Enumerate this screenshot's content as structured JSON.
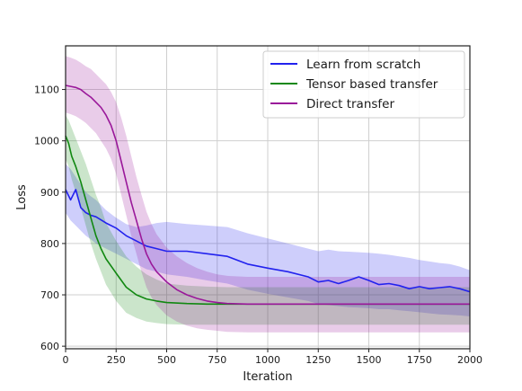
{
  "chart_data": {
    "type": "line",
    "title": "",
    "xlabel": "Iteration",
    "ylabel": "Loss",
    "xlim": [
      0,
      2000
    ],
    "ylim": [
      595,
      1185
    ],
    "xticks": [
      0,
      250,
      500,
      750,
      1000,
      1250,
      1500,
      1750,
      2000
    ],
    "yticks": [
      600,
      700,
      800,
      900,
      1000,
      1100
    ],
    "grid": true,
    "legend_position": "top-right",
    "series": [
      {
        "name": "Learn from scratch",
        "color": "#2222ee",
        "x": [
          0,
          25,
          50,
          75,
          100,
          125,
          150,
          200,
          250,
          300,
          350,
          400,
          450,
          500,
          600,
          700,
          800,
          900,
          1000,
          1100,
          1200,
          1250,
          1300,
          1350,
          1400,
          1450,
          1500,
          1550,
          1600,
          1650,
          1700,
          1750,
          1800,
          1850,
          1900,
          1950,
          2000
        ],
        "y": [
          905,
          885,
          905,
          870,
          860,
          855,
          852,
          840,
          830,
          815,
          805,
          795,
          790,
          785,
          785,
          780,
          775,
          760,
          752,
          745,
          735,
          725,
          728,
          722,
          728,
          735,
          728,
          720,
          722,
          718,
          712,
          716,
          712,
          714,
          716,
          712,
          706
        ],
        "upper": [
          955,
          945,
          930,
          915,
          900,
          892,
          885,
          865,
          850,
          838,
          832,
          835,
          840,
          842,
          838,
          835,
          832,
          820,
          810,
          800,
          790,
          785,
          788,
          785,
          784,
          783,
          782,
          780,
          778,
          775,
          772,
          768,
          765,
          762,
          760,
          755,
          748
        ],
        "lower": [
          860,
          845,
          835,
          825,
          815,
          808,
          800,
          790,
          780,
          770,
          760,
          750,
          745,
          740,
          735,
          728,
          722,
          710,
          702,
          695,
          688,
          682,
          680,
          678,
          676,
          675,
          674,
          672,
          672,
          670,
          668,
          666,
          664,
          662,
          661,
          660,
          658
        ]
      },
      {
        "name": "Tensor based transfer",
        "color": "#118811",
        "x": [
          0,
          15,
          30,
          50,
          75,
          100,
          125,
          150,
          175,
          200,
          250,
          300,
          350,
          400,
          450,
          500,
          600,
          700,
          800,
          900,
          1000,
          1200,
          1400,
          1600,
          1800,
          2000
        ],
        "y": [
          1010,
          995,
          970,
          950,
          920,
          885,
          850,
          815,
          790,
          770,
          742,
          715,
          700,
          692,
          688,
          685,
          683,
          682,
          682,
          682,
          682,
          682,
          682,
          682,
          682,
          682
        ],
        "upper": [
          1050,
          1040,
          1025,
          1005,
          980,
          955,
          925,
          895,
          870,
          840,
          805,
          775,
          755,
          740,
          730,
          722,
          718,
          716,
          715,
          715,
          715,
          715,
          715,
          715,
          715,
          715
        ],
        "lower": [
          965,
          950,
          925,
          900,
          870,
          835,
          800,
          770,
          745,
          720,
          688,
          665,
          655,
          648,
          645,
          643,
          642,
          642,
          642,
          642,
          642,
          642,
          642,
          642,
          642,
          642
        ]
      },
      {
        "name": "Direct transfer",
        "color": "#9a189a",
        "x": [
          0,
          25,
          50,
          75,
          100,
          125,
          150,
          175,
          200,
          225,
          250,
          275,
          300,
          325,
          350,
          375,
          400,
          425,
          450,
          500,
          550,
          600,
          650,
          700,
          750,
          800,
          900,
          1000,
          1200,
          1400,
          1600,
          1800,
          2000
        ],
        "y": [
          1108,
          1106,
          1104,
          1100,
          1092,
          1085,
          1075,
          1065,
          1050,
          1030,
          1000,
          960,
          920,
          880,
          845,
          810,
          780,
          760,
          745,
          725,
          710,
          700,
          693,
          688,
          685,
          683,
          682,
          682,
          682,
          682,
          682,
          682,
          682
        ],
        "upper": [
          1165,
          1162,
          1158,
          1152,
          1145,
          1140,
          1130,
          1120,
          1110,
          1095,
          1075,
          1045,
          1010,
          970,
          930,
          895,
          862,
          838,
          818,
          792,
          775,
          762,
          752,
          745,
          740,
          737,
          735,
          735,
          735,
          735,
          735,
          735,
          735
        ],
        "lower": [
          1055,
          1052,
          1048,
          1042,
          1035,
          1025,
          1015,
          1000,
          985,
          965,
          935,
          895,
          855,
          815,
          780,
          745,
          715,
          695,
          680,
          660,
          648,
          640,
          635,
          632,
          630,
          628,
          627,
          627,
          627,
          627,
          627,
          627,
          627
        ]
      }
    ]
  }
}
